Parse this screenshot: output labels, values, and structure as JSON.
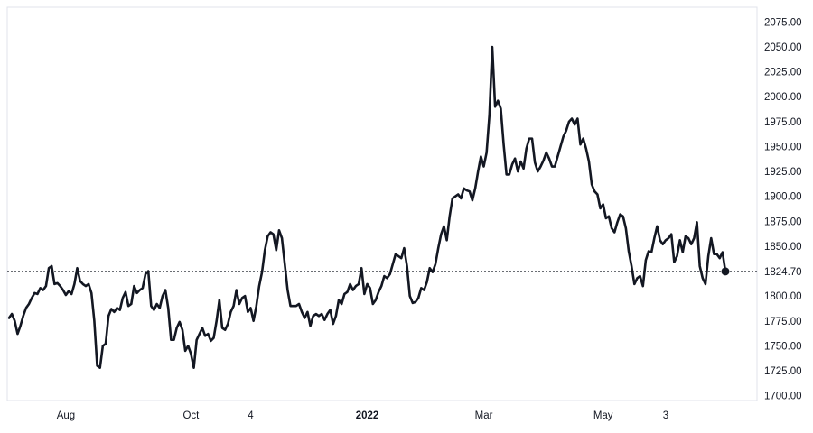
{
  "chart_data": {
    "type": "line",
    "title": "",
    "xlabel": "",
    "ylabel": "",
    "ylim": [
      1700,
      2082
    ],
    "grid": false,
    "y_axis_position": "right",
    "line_color": "#131722",
    "last_price": {
      "value": 1824.7,
      "label": "1824.70",
      "style": "dotted horizontal line with end marker"
    },
    "y_ticks": [
      {
        "value": 2075,
        "label": "2075.00"
      },
      {
        "value": 2050,
        "label": "2050.00"
      },
      {
        "value": 2025,
        "label": "2025.00"
      },
      {
        "value": 2000,
        "label": "2000.00"
      },
      {
        "value": 1975,
        "label": "1975.00"
      },
      {
        "value": 1950,
        "label": "1950.00"
      },
      {
        "value": 1925,
        "label": "1925.00"
      },
      {
        "value": 1900,
        "label": "1900.00"
      },
      {
        "value": 1875,
        "label": "1875.00"
      },
      {
        "value": 1850,
        "label": "1850.00"
      },
      {
        "value": 1825,
        "label": "1825.00"
      },
      {
        "value": 1800,
        "label": "1800.00"
      },
      {
        "value": 1775,
        "label": "1775.00"
      },
      {
        "value": 1750,
        "label": "1750.00"
      },
      {
        "value": 1725,
        "label": "1725.00"
      },
      {
        "value": 1700,
        "label": "1700.00"
      }
    ],
    "x_ticks": [
      {
        "index": 20,
        "label": "Aug",
        "bold": false
      },
      {
        "index": 64,
        "label": "Oct",
        "bold": false
      },
      {
        "index": 85,
        "label": "4",
        "bold": false
      },
      {
        "index": 126,
        "label": "2022",
        "bold": true
      },
      {
        "index": 167,
        "label": "Mar",
        "bold": false
      },
      {
        "index": 209,
        "label": "May",
        "bold": false
      },
      {
        "index": 231,
        "label": "3",
        "bold": false
      }
    ],
    "series": [
      {
        "values": [
          1778,
          1782,
          1775,
          1762,
          1770,
          1780,
          1788,
          1792,
          1798,
          1803,
          1802,
          1808,
          1806,
          1810,
          1828,
          1830,
          1812,
          1813,
          1810,
          1806,
          1801,
          1805,
          1802,
          1812,
          1828,
          1815,
          1812,
          1810,
          1812,
          1803,
          1775,
          1730,
          1728,
          1750,
          1752,
          1780,
          1787,
          1784,
          1788,
          1786,
          1798,
          1804,
          1790,
          1792,
          1810,
          1803,
          1806,
          1808,
          1822,
          1825,
          1790,
          1786,
          1792,
          1788,
          1800,
          1806,
          1788,
          1756,
          1756,
          1768,
          1774,
          1766,
          1745,
          1750,
          1742,
          1728,
          1756,
          1762,
          1768,
          1760,
          1762,
          1755,
          1758,
          1775,
          1796,
          1768,
          1766,
          1772,
          1784,
          1790,
          1806,
          1792,
          1798,
          1800,
          1784,
          1788,
          1775,
          1790,
          1810,
          1824,
          1846,
          1860,
          1864,
          1862,
          1846,
          1866,
          1858,
          1832,
          1806,
          1790,
          1790,
          1790,
          1792,
          1784,
          1778,
          1784,
          1770,
          1780,
          1782,
          1780,
          1782,
          1776,
          1782,
          1786,
          1772,
          1780,
          1796,
          1792,
          1802,
          1804,
          1812,
          1806,
          1810,
          1812,
          1828,
          1802,
          1812,
          1808,
          1792,
          1796,
          1804,
          1810,
          1820,
          1818,
          1822,
          1832,
          1842,
          1840,
          1838,
          1848,
          1830,
          1800,
          1793,
          1794,
          1798,
          1808,
          1806,
          1814,
          1828,
          1824,
          1832,
          1848,
          1862,
          1870,
          1856,
          1880,
          1898,
          1900,
          1902,
          1898,
          1908,
          1906,
          1905,
          1896,
          1908,
          1925,
          1940,
          1930,
          1944,
          1982,
          2050,
          1990,
          1996,
          1988,
          1952,
          1922,
          1922,
          1932,
          1938,
          1925,
          1935,
          1928,
          1948,
          1958,
          1958,
          1934,
          1925,
          1930,
          1936,
          1944,
          1938,
          1930,
          1930,
          1940,
          1950,
          1960,
          1966,
          1975,
          1978,
          1972,
          1978,
          1952,
          1958,
          1948,
          1935,
          1912,
          1905,
          1902,
          1888,
          1892,
          1878,
          1880,
          1868,
          1864,
          1874,
          1882,
          1880,
          1868,
          1845,
          1830,
          1812,
          1818,
          1820,
          1810,
          1836,
          1845,
          1844,
          1858,
          1870,
          1856,
          1852,
          1856,
          1858,
          1862,
          1834,
          1840,
          1856,
          1844,
          1860,
          1858,
          1852,
          1858,
          1874,
          1830,
          1818,
          1812,
          1840,
          1858,
          1842,
          1842,
          1838,
          1844,
          1824.7
        ]
      }
    ]
  }
}
